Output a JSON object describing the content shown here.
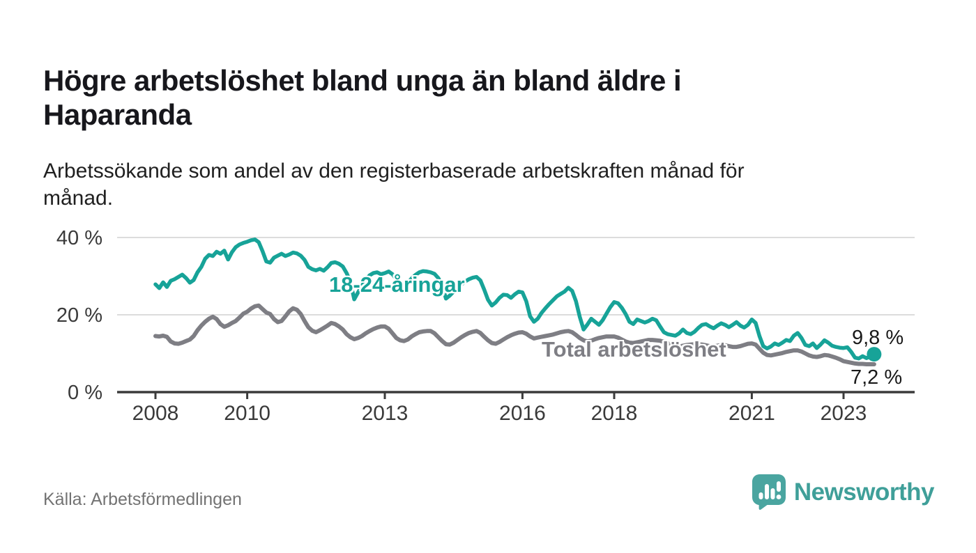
{
  "header": {
    "title_line1": "Högre arbetslöshet bland unga än bland äldre i",
    "title_line2": "Haparanda",
    "subtitle_line1": "Arbetssökande som andel av den registerbaserade arbetskraften månad för",
    "subtitle_line2": "månad."
  },
  "chart_data": {
    "type": "line",
    "title": "Högre arbetslöshet bland unga än bland äldre i Haparanda",
    "subtitle": "Arbetssökande som andel av den registerbaserade arbetskraften månad för månad.",
    "unit": "%",
    "x_start_year": 2008,
    "x_resolution": "monthly",
    "x_end": "2023-09",
    "ylim": [
      0,
      44
    ],
    "grid": "horizontal",
    "legend_position": "inline-labels",
    "yticks": [
      {
        "value": 0,
        "label": "0 %"
      },
      {
        "value": 20,
        "label": "20 %"
      },
      {
        "value": 40,
        "label": "40 %"
      }
    ],
    "xticks": [
      {
        "value": 2008,
        "label": "2008"
      },
      {
        "value": 2010,
        "label": "2010"
      },
      {
        "value": 2013,
        "label": "2013"
      },
      {
        "value": 2016,
        "label": "2016"
      },
      {
        "value": 2018,
        "label": "2018"
      },
      {
        "value": 2021,
        "label": "2021"
      },
      {
        "value": 2023,
        "label": "2023"
      }
    ],
    "style": {
      "grid_color": "#dcdcdc",
      "axis_color": "#3b3b3b",
      "axis_text_color": "#3a3a3a",
      "background": "#ffffff"
    },
    "series": [
      {
        "name": "18-24-åringar",
        "color": "#17a398",
        "width": 5.5,
        "end_dot": true,
        "end_label": "9,8 %",
        "values": [
          27.9,
          26.9,
          28.4,
          27.2,
          28.8,
          29.2,
          29.8,
          30.4,
          29.5,
          28.3,
          29.0,
          31.0,
          32.4,
          34.5,
          35.5,
          35.2,
          36.3,
          35.8,
          36.6,
          34.3,
          36.2,
          37.5,
          38.2,
          38.6,
          38.9,
          39.3,
          39.5,
          38.8,
          36.5,
          33.8,
          33.5,
          34.8,
          35.3,
          35.8,
          35.2,
          35.6,
          36.1,
          35.9,
          35.3,
          34.2,
          32.4,
          31.8,
          31.5,
          31.9,
          31.4,
          32.3,
          33.4,
          33.6,
          33.2,
          32.5,
          30.8,
          28.5,
          24.0,
          25.8,
          27.5,
          29.0,
          30.2,
          30.8,
          31.0,
          30.5,
          30.8,
          31.2,
          30.5,
          29.2,
          28.0,
          27.4,
          28.2,
          29.4,
          30.3,
          31.0,
          31.3,
          31.2,
          31.0,
          30.6,
          29.5,
          27.5,
          24.2,
          25.0,
          26.0,
          27.1,
          27.8,
          28.6,
          29.2,
          29.6,
          29.8,
          28.9,
          26.5,
          23.9,
          22.4,
          23.2,
          24.4,
          25.2,
          25.1,
          24.4,
          25.3,
          26.0,
          25.8,
          23.5,
          19.6,
          18.2,
          19.0,
          20.5,
          21.7,
          22.8,
          23.8,
          24.8,
          25.4,
          26.0,
          27.0,
          26.2,
          23.5,
          19.5,
          16.2,
          17.5,
          19.0,
          18.2,
          17.4,
          18.6,
          20.3,
          22.0,
          23.3,
          23.0,
          21.8,
          20.2,
          18.2,
          17.6,
          18.8,
          18.4,
          18.0,
          18.4,
          19.0,
          18.6,
          17.0,
          15.5,
          15.0,
          14.8,
          14.6,
          15.2,
          16.2,
          15.3,
          15.0,
          15.6,
          16.6,
          17.4,
          17.6,
          17.0,
          16.5,
          17.2,
          17.8,
          17.4,
          16.8,
          17.4,
          18.1,
          17.2,
          16.7,
          17.4,
          18.8,
          17.9,
          14.5,
          11.9,
          11.3,
          11.8,
          12.6,
          12.2,
          12.8,
          13.5,
          13.2,
          14.6,
          15.3,
          14.0,
          12.2,
          11.9,
          12.6,
          11.4,
          12.3,
          13.4,
          12.8,
          12.0,
          11.7,
          11.5,
          11.4,
          11.6,
          10.4,
          8.9,
          8.7,
          9.3,
          8.8,
          9.2,
          9.8
        ]
      },
      {
        "name": "Total arbetslöshet",
        "color": "#7e7e84",
        "width": 6,
        "end_dot": false,
        "end_label": "7,2 %",
        "values": [
          14.5,
          14.4,
          14.6,
          14.3,
          13.1,
          12.6,
          12.5,
          12.8,
          13.2,
          13.6,
          14.5,
          16.0,
          17.2,
          18.2,
          19.0,
          19.5,
          18.9,
          17.6,
          16.9,
          17.3,
          17.9,
          18.4,
          19.3,
          20.3,
          20.8,
          21.6,
          22.2,
          22.4,
          21.5,
          20.6,
          20.2,
          18.9,
          18.1,
          18.4,
          19.6,
          20.9,
          21.7,
          21.3,
          20.2,
          18.4,
          16.8,
          15.9,
          15.5,
          16.0,
          16.6,
          17.2,
          17.9,
          17.6,
          17.0,
          16.2,
          15.0,
          14.2,
          13.7,
          14.0,
          14.5,
          15.2,
          15.8,
          16.3,
          16.7,
          17.0,
          17.0,
          16.4,
          15.2,
          14.0,
          13.4,
          13.2,
          13.6,
          14.4,
          15.0,
          15.5,
          15.7,
          15.8,
          15.8,
          15.2,
          14.2,
          13.2,
          12.4,
          12.3,
          12.8,
          13.5,
          14.2,
          14.8,
          15.3,
          15.6,
          15.8,
          15.3,
          14.3,
          13.4,
          12.7,
          12.5,
          13.0,
          13.6,
          14.2,
          14.7,
          15.1,
          15.4,
          15.5,
          15.1,
          14.4,
          13.9,
          14.1,
          14.3,
          14.5,
          14.7,
          14.9,
          15.2,
          15.5,
          15.7,
          15.8,
          15.5,
          14.8,
          14.0,
          13.4,
          13.1,
          13.3,
          13.7,
          14.0,
          14.2,
          14.4,
          14.4,
          14.4,
          14.1,
          13.6,
          13.1,
          12.8,
          12.7,
          12.9,
          13.1,
          13.3,
          13.5,
          13.5,
          13.4,
          13.3,
          13.0,
          12.6,
          12.2,
          11.9,
          11.8,
          12.0,
          12.2,
          12.3,
          12.4,
          12.4,
          12.3,
          12.1,
          11.9,
          11.8,
          12.0,
          12.2,
          12.1,
          11.9,
          11.7,
          11.7,
          11.9,
          12.2,
          12.5,
          12.6,
          12.3,
          11.2,
          10.2,
          9.6,
          9.5,
          9.7,
          9.9,
          10.1,
          10.4,
          10.6,
          10.8,
          10.8,
          10.5,
          10.0,
          9.5,
          9.2,
          9.1,
          9.3,
          9.6,
          9.5,
          9.2,
          8.9,
          8.5,
          8.0,
          7.8,
          7.6,
          7.4,
          7.3,
          7.3,
          7.2,
          7.2,
          7.2
        ]
      }
    ]
  },
  "footer": {
    "source": "Källa: Arbetsförmedlingen",
    "brand_name": "Newsworthy"
  },
  "colors": {
    "youth_line": "#17a398",
    "total_line": "#7e7e84",
    "brand_icon": "#4aa5a0",
    "brand_text": "#3f9f99"
  }
}
